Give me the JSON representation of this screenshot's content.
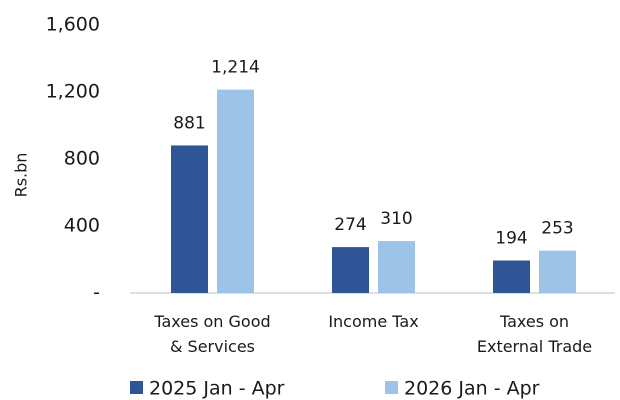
{
  "chart_data": {
    "type": "bar",
    "y_label": "Rs.bn",
    "categories": [
      "Taxes on Good\n& Services",
      "Income Tax",
      "Taxes on\nExternal Trade"
    ],
    "series": [
      {
        "name": "2025 Jan - Apr",
        "color": "#2f5597",
        "values": [
          881,
          274,
          194
        ]
      },
      {
        "name": "2026 Jan - Apr",
        "color": "#9dc3e6",
        "values": [
          1214,
          310,
          253
        ],
        "value_labels": [
          "1,214",
          "310",
          "253"
        ]
      }
    ],
    "ylim": [
      0,
      1600
    ],
    "yticks": [
      {
        "value": 0,
        "label": "-"
      },
      400,
      800,
      {
        "value": 1200,
        "label": "1,200"
      },
      {
        "value": 1600,
        "label": "1,600"
      }
    ],
    "grid": false
  }
}
